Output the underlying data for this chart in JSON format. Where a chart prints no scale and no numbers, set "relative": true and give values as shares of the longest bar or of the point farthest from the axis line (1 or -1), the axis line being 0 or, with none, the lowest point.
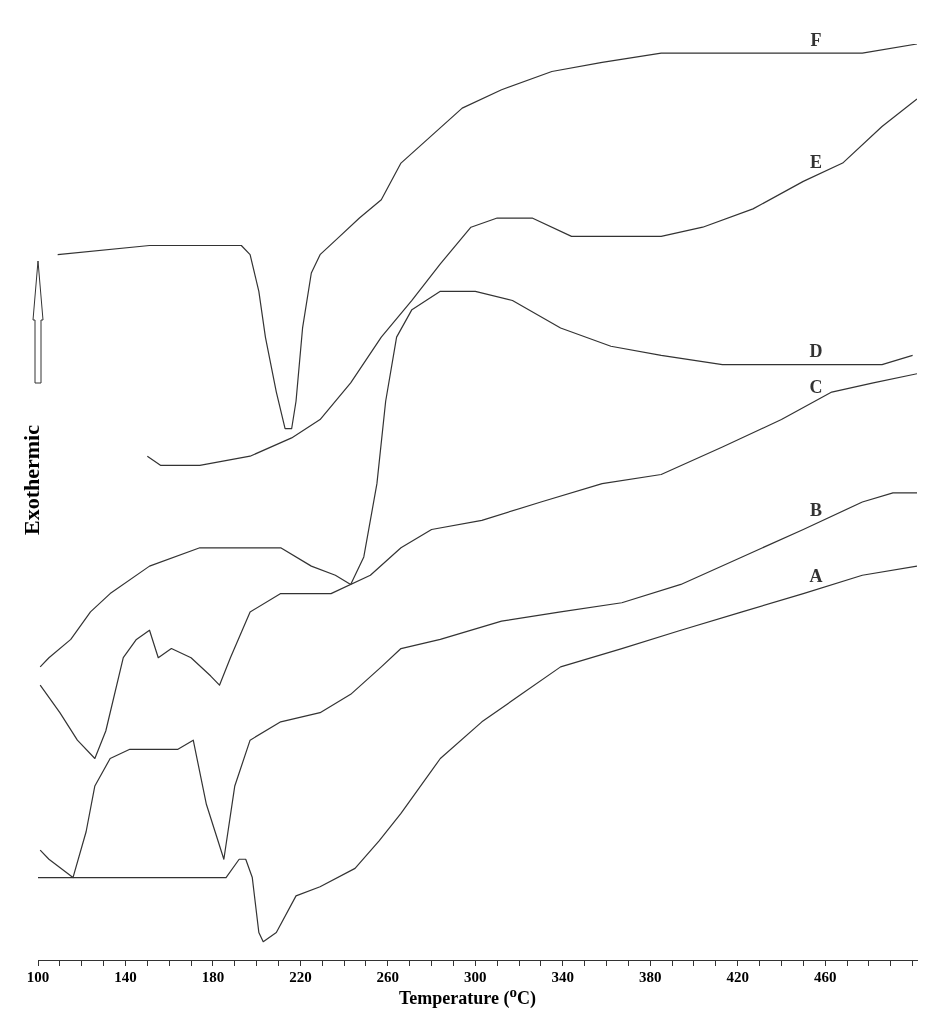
{
  "chart_data": {
    "type": "line",
    "relative": true,
    "xlabel": "Temperature ($^{o}$C)",
    "ylabel": "Exothermic",
    "xlim": [
      100,
      502
    ],
    "xticks": [
      100,
      {
        "value": 110,
        "label": null
      },
      {
        "value": 120,
        "label": null
      },
      {
        "value": 130,
        "label": null
      },
      140,
      {
        "value": 150,
        "label": null
      },
      {
        "value": 160,
        "label": null
      },
      {
        "value": 170,
        "label": null
      },
      180,
      {
        "value": 190,
        "label": null
      },
      {
        "value": 200,
        "label": null
      },
      {
        "value": 210,
        "label": null
      },
      220,
      {
        "value": 230,
        "label": null
      },
      {
        "value": 240,
        "label": null
      },
      {
        "value": 250,
        "label": null
      },
      260,
      {
        "value": 270,
        "label": null
      },
      {
        "value": 280,
        "label": null
      },
      {
        "value": 290,
        "label": null
      },
      300,
      {
        "value": 310,
        "label": null
      },
      {
        "value": 320,
        "label": null
      },
      {
        "value": 330,
        "label": null
      },
      340,
      {
        "value": 350,
        "label": null
      },
      {
        "value": 360,
        "label": null
      },
      {
        "value": 370,
        "label": null
      },
      380,
      {
        "value": 390,
        "label": null
      },
      {
        "value": 400,
        "label": null
      },
      {
        "value": 410,
        "label": null
      },
      420,
      {
        "value": 430,
        "label": null
      },
      {
        "value": 440,
        "label": null
      },
      {
        "value": 450,
        "label": null
      },
      460,
      {
        "value": 470,
        "label": null
      },
      {
        "value": 480,
        "label": null
      },
      {
        "value": 490,
        "label": null
      },
      {
        "value": 500,
        "label": null
      }
    ],
    "grid": false,
    "legend": false,
    "marker": "none",
    "line_style": "solid",
    "series": [
      {
        "name": "A",
        "color": "#333333",
        "x": [
          100,
          128,
          174,
          186,
          192,
          195,
          198,
          201,
          203,
          209,
          218,
          229,
          245,
          256,
          266,
          284,
          303,
          321,
          339,
          367,
          394,
          422,
          450,
          477,
          502
        ],
        "values": [
          0.09,
          0.09,
          0.09,
          0.09,
          0.11,
          0.11,
          0.09,
          0.03,
          0.02,
          0.03,
          0.07,
          0.08,
          0.1,
          0.13,
          0.16,
          0.22,
          0.26,
          0.29,
          0.32,
          0.34,
          0.36,
          0.38,
          0.4,
          0.42,
          0.43
        ]
      },
      {
        "name": "B",
        "color": "#333333",
        "x": [
          101,
          105,
          116,
          122,
          126,
          133,
          142,
          156,
          164,
          171,
          177,
          181,
          185,
          190,
          197,
          211,
          229,
          243,
          257,
          266,
          284,
          312,
          339,
          367,
          394,
          422,
          450,
          477,
          491,
          502
        ],
        "values": [
          0.12,
          0.11,
          0.09,
          0.14,
          0.19,
          0.22,
          0.23,
          0.23,
          0.23,
          0.24,
          0.17,
          0.14,
          0.11,
          0.19,
          0.24,
          0.26,
          0.27,
          0.29,
          0.32,
          0.34,
          0.35,
          0.37,
          0.38,
          0.39,
          0.41,
          0.44,
          0.47,
          0.5,
          0.51,
          0.51
        ]
      },
      {
        "name": "C",
        "color": "#333333",
        "x": [
          101,
          110,
          118,
          126,
          131,
          139,
          145,
          151,
          155,
          161,
          170,
          179,
          183,
          188,
          197,
          211,
          234,
          252,
          266,
          280,
          303,
          330,
          358,
          385,
          413,
          440,
          463,
          482,
          502
        ],
        "values": [
          0.3,
          0.27,
          0.24,
          0.22,
          0.25,
          0.33,
          0.35,
          0.36,
          0.33,
          0.34,
          0.33,
          0.31,
          0.3,
          0.33,
          0.38,
          0.4,
          0.4,
          0.42,
          0.45,
          0.47,
          0.48,
          0.5,
          0.52,
          0.53,
          0.56,
          0.59,
          0.62,
          0.63,
          0.64
        ]
      },
      {
        "name": "D",
        "color": "#333333",
        "x": [
          101,
          105,
          115,
          124,
          133,
          151,
          174,
          197,
          211,
          225,
          236,
          243,
          249,
          255,
          259,
          264,
          271,
          284,
          300,
          317,
          339,
          362,
          385,
          413,
          440,
          468,
          486,
          500
        ],
        "values": [
          0.32,
          0.33,
          0.35,
          0.38,
          0.4,
          0.43,
          0.45,
          0.45,
          0.45,
          0.43,
          0.42,
          0.41,
          0.44,
          0.52,
          0.61,
          0.68,
          0.71,
          0.73,
          0.73,
          0.72,
          0.69,
          0.67,
          0.66,
          0.65,
          0.65,
          0.65,
          0.65,
          0.66
        ]
      },
      {
        "name": "E",
        "color": "#333333",
        "x": [
          150,
          156,
          174,
          197,
          216,
          229,
          243,
          257,
          271,
          284,
          298,
          310,
          326,
          344,
          367,
          385,
          404,
          427,
          450,
          468,
          486,
          502
        ],
        "values": [
          0.55,
          0.54,
          0.54,
          0.55,
          0.57,
          0.59,
          0.63,
          0.68,
          0.72,
          0.76,
          0.8,
          0.81,
          0.81,
          0.79,
          0.79,
          0.79,
          0.8,
          0.82,
          0.85,
          0.87,
          0.91,
          0.94
        ]
      },
      {
        "name": "F",
        "color": "#333333",
        "x": [
          109,
          151,
          193,
          197,
          201,
          204,
          209,
          213,
          216,
          218,
          221,
          225,
          229,
          238,
          247,
          257,
          266,
          280,
          294,
          312,
          335,
          358,
          385,
          413,
          450,
          477,
          502
        ],
        "values": [
          0.77,
          0.78,
          0.78,
          0.77,
          0.73,
          0.68,
          0.62,
          0.58,
          0.58,
          0.61,
          0.69,
          0.75,
          0.77,
          0.79,
          0.81,
          0.83,
          0.87,
          0.9,
          0.93,
          0.95,
          0.97,
          0.98,
          0.99,
          0.99,
          0.99,
          0.99,
          1.0
        ]
      }
    ]
  }
}
